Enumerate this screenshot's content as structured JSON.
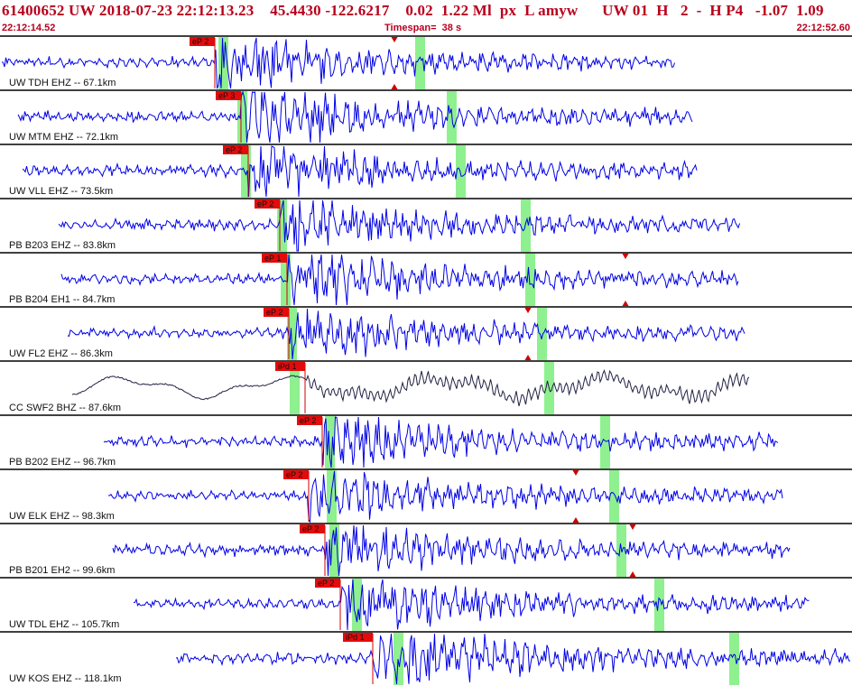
{
  "header": {
    "title": "61400652 UW 2018-07-23 22:12:13.23    45.4430 -122.6217    0.02  1.22 Ml  px  L amyw      UW 01  H   2  -  H P4   -1.07  1.09",
    "start_time": "22:12:14.52",
    "timespan": "Timespan=  38 s",
    "end_time": "22:12:52.60"
  },
  "colors": {
    "header_text": "#b8001c",
    "trace_default": "#0000e6",
    "trace_broadband": "#222244",
    "pick_box": "#e30b0b",
    "pick_line": "#d00000",
    "marker": "#d00000",
    "window_highlight": "#8ff08f"
  },
  "traces": [
    {
      "label": "UW TDH EHZ -- 67.1km",
      "pick": "eP 2",
      "color": "blue"
    },
    {
      "label": "UW MTM EHZ -- 72.1km",
      "pick": "eP 3",
      "color": "blue"
    },
    {
      "label": "UW VLL EHZ -- 73.5km",
      "pick": "eP 2",
      "color": "blue"
    },
    {
      "label": "PB B203 EHZ -- 83.8km",
      "pick": "eP 2",
      "color": "blue"
    },
    {
      "label": "PB B204 EH1 -- 84.7km",
      "pick": "eP 1",
      "color": "blue"
    },
    {
      "label": "UW FL2 EHZ -- 86.3km",
      "pick": "eP 2",
      "color": "blue"
    },
    {
      "label": "CC SWF2 BHZ -- 87.6km",
      "pick": "iPd 1",
      "color": "dark"
    },
    {
      "label": "PB B202 EHZ -- 96.7km",
      "pick": "eP 2",
      "color": "blue"
    },
    {
      "label": "UW ELK EHZ -- 98.3km",
      "pick": "eP 2",
      "color": "blue"
    },
    {
      "label": "PB B201 EH2 -- 99.6km",
      "pick": "eP 2",
      "color": "blue"
    },
    {
      "label": "UW TDL EHZ -- 105.7km",
      "pick": "eP 2",
      "color": "blue"
    },
    {
      "label": "UW KOS EHZ -- 118.1km",
      "pick": "iPd 1",
      "color": "blue"
    }
  ]
}
